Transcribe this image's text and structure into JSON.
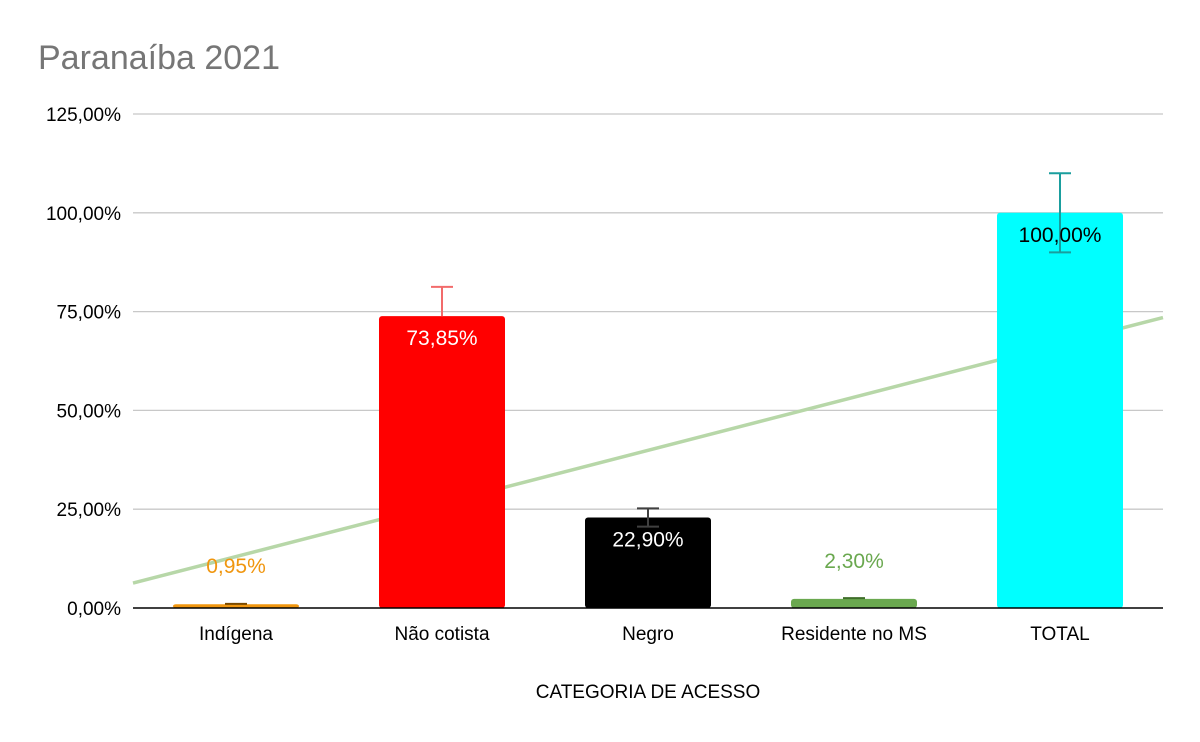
{
  "chart_data": {
    "type": "bar",
    "title": "Paranaíba 2021",
    "xlabel": "CATEGORIA DE ACESSO",
    "ylabel": "",
    "ylim": [
      0,
      125
    ],
    "yticks": [
      0,
      25,
      50,
      75,
      100,
      125
    ],
    "ytick_labels": [
      "0,00%",
      "25,00%",
      "50,00%",
      "75,00%",
      "100,00%",
      "125,00%"
    ],
    "categories": [
      "Indígena",
      "Não cotista",
      "Negro",
      "Residente no MS",
      "TOTAL"
    ],
    "values": [
      0.95,
      73.85,
      22.9,
      2.3,
      100.0
    ],
    "data_labels": [
      "0,95%",
      "73,85%",
      "22,90%",
      "2,30%",
      "100,00%"
    ],
    "data_label_positions": [
      "above",
      "inside",
      "inside",
      "above",
      "inside"
    ],
    "error_bars": [
      {
        "plus": 0.1,
        "minus": 0
      },
      {
        "plus": 7.4,
        "minus": 0
      },
      {
        "plus": 2.3,
        "minus": 2.3
      },
      {
        "plus": 0.2,
        "minus": 0
      },
      {
        "plus": 10,
        "minus": 10
      }
    ],
    "colors": [
      "#f0960f",
      "#ff0000",
      "#000000",
      "#6aa84f",
      "#00ffff"
    ],
    "error_bar_colors": [
      "#7a4a00",
      "#f26b6b",
      "#404040",
      "#3f6e2a",
      "#1a9e9e"
    ],
    "label_colors": [
      "#f0960f",
      "#ffffff",
      "#ffffff",
      "#6aa84f",
      "#000000"
    ],
    "trendline": {
      "type": "linear",
      "color": "#b7d7a8",
      "start_y": 6.3,
      "end_y": 73.5
    },
    "grid": true,
    "legend": "none"
  }
}
